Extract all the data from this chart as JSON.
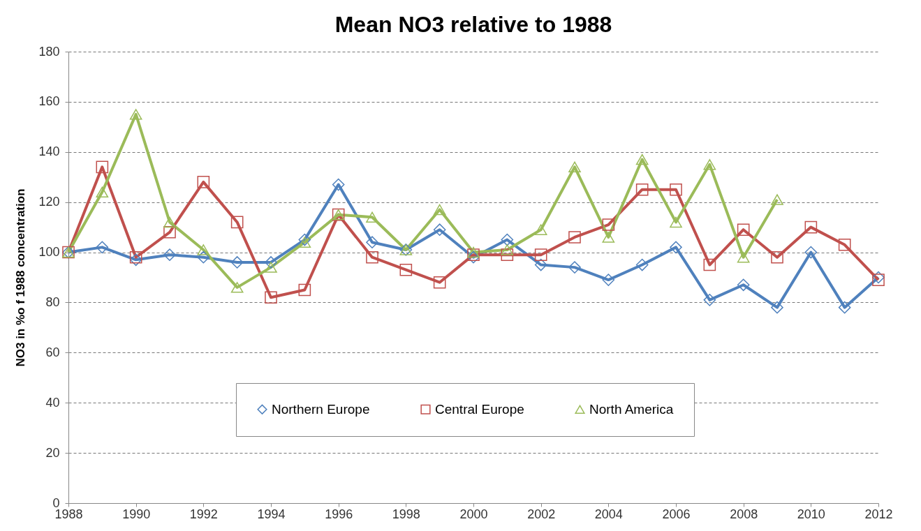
{
  "chart_data": {
    "type": "line",
    "title": "Mean NO3 relative to 1988",
    "ylabel": "NO3 in %o f 1988 concentration",
    "x": [
      1988,
      1989,
      1990,
      1991,
      1992,
      1993,
      1994,
      1995,
      1996,
      1997,
      1998,
      1999,
      2000,
      2001,
      2002,
      2003,
      2004,
      2005,
      2006,
      2007,
      2008,
      2009,
      2010,
      2011,
      2012
    ],
    "series": [
      {
        "name": "Northern Europe",
        "color": "#4f81bd",
        "marker": "diamond",
        "values": [
          100,
          102,
          97,
          99,
          98,
          96,
          96,
          105,
          127,
          104,
          101,
          109,
          98,
          105,
          95,
          94,
          89,
          95,
          102,
          81,
          87,
          78,
          100,
          78,
          90
        ]
      },
      {
        "name": "Central Europe",
        "color": "#c0504d",
        "marker": "square",
        "values": [
          100,
          134,
          98,
          108,
          128,
          112,
          82,
          85,
          115,
          98,
          93,
          88,
          99,
          99,
          99,
          106,
          111,
          125,
          125,
          95,
          109,
          98,
          110,
          103,
          89
        ]
      },
      {
        "name": "North America",
        "color": "#9bbb59",
        "marker": "triangle",
        "values": [
          100,
          124,
          155,
          112,
          101,
          86,
          94,
          104,
          115,
          114,
          101,
          117,
          100,
          101,
          109,
          134,
          106,
          137,
          112,
          135,
          98,
          121,
          null,
          null,
          null
        ]
      }
    ],
    "xlim": [
      1988,
      2012
    ],
    "xticks": [
      1988,
      1990,
      1992,
      1994,
      1996,
      1998,
      2000,
      2002,
      2004,
      2006,
      2008,
      2010,
      2012
    ],
    "ylim": [
      0,
      180
    ],
    "yticks": [
      0,
      20,
      40,
      60,
      80,
      100,
      120,
      140,
      160,
      180
    ],
    "grid": "y",
    "legend": "bottom",
    "line_style": "solid"
  }
}
